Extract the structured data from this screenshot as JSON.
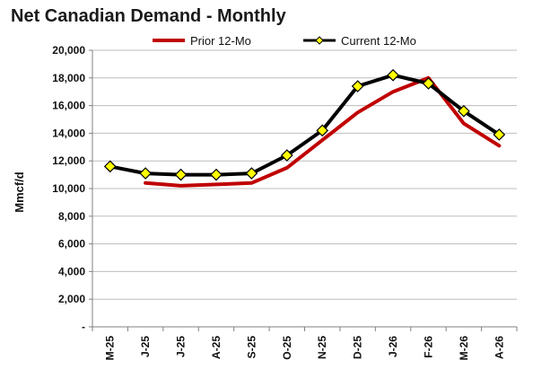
{
  "chart_data": {
    "type": "line",
    "title": "Net Canadian Demand - Monthly",
    "ylabel": "Mmcf/d",
    "xlabel": "",
    "categories": [
      "M-25",
      "J-25",
      "J-25",
      "A-25",
      "S-25",
      "O-25",
      "N-25",
      "D-25",
      "J-26",
      "F-26",
      "M-26",
      "A-26"
    ],
    "y_ticks": [
      "-",
      "2,000",
      "4,000",
      "6,000",
      "8,000",
      "10,000",
      "12,000",
      "14,000",
      "16,000",
      "18,000",
      "20,000"
    ],
    "ylim": [
      0,
      20000
    ],
    "grid": true,
    "legend_position": "top",
    "series": [
      {
        "name": "Prior 12-Mo",
        "color": "#c00000",
        "marker": "none",
        "values": [
          null,
          10400,
          10200,
          10300,
          10400,
          11500,
          13500,
          15500,
          17000,
          18000,
          14700,
          13100
        ]
      },
      {
        "name": "Current 12-Mo",
        "color": "#000000",
        "marker": "diamond",
        "marker_color": "#ffff00",
        "values": [
          11600,
          11100,
          11000,
          11000,
          11100,
          12400,
          14200,
          17400,
          18200,
          17600,
          15600,
          13900
        ]
      }
    ]
  }
}
